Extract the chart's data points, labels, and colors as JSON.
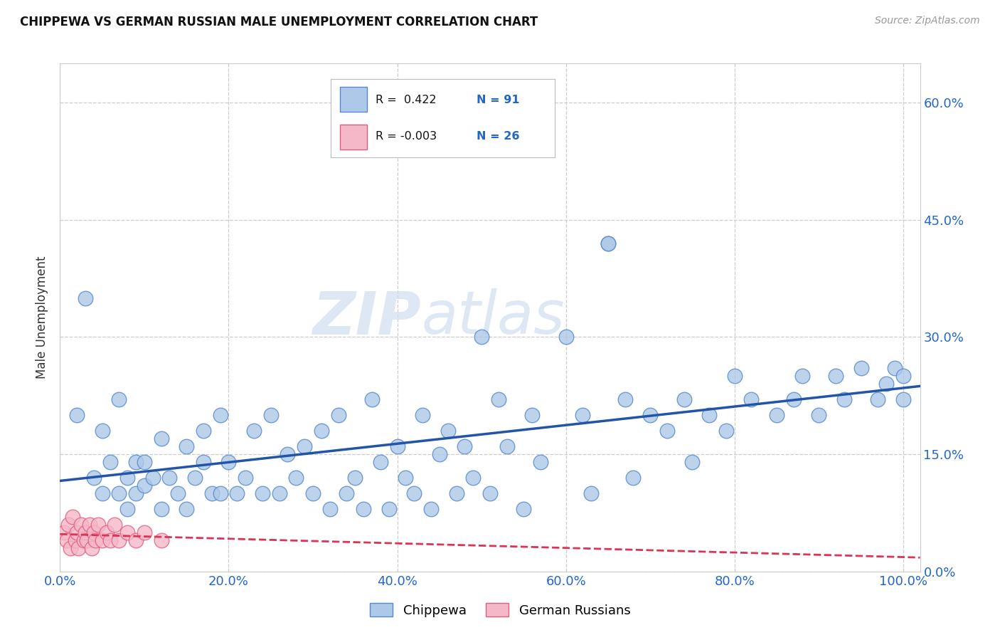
{
  "title": "CHIPPEWA VS GERMAN RUSSIAN MALE UNEMPLOYMENT CORRELATION CHART",
  "source": "Source: ZipAtlas.com",
  "ylabel": "Male Unemployment",
  "chippewa_color": "#adc8e8",
  "chippewa_edge": "#5588cc",
  "german_russian_color": "#f5b8c8",
  "german_russian_edge": "#e06080",
  "regression_line_chippewa_color": "#2255aa",
  "regression_line_german_color": "#dd3355",
  "watermark_zip": "ZIP",
  "watermark_atlas": "atlas",
  "legend_line1": "R =  0.422   N = 91",
  "legend_line2": "R = -0.003   N = 26",
  "chippewa_x": [
    2,
    3,
    4,
    5,
    5,
    6,
    7,
    7,
    8,
    8,
    9,
    9,
    10,
    10,
    11,
    12,
    12,
    13,
    14,
    15,
    15,
    16,
    17,
    17,
    18,
    19,
    19,
    20,
    21,
    22,
    23,
    24,
    25,
    26,
    27,
    28,
    29,
    30,
    31,
    32,
    33,
    34,
    35,
    36,
    37,
    38,
    39,
    40,
    41,
    42,
    43,
    44,
    45,
    46,
    47,
    48,
    49,
    50,
    51,
    52,
    53,
    55,
    56,
    57,
    60,
    62,
    63,
    65,
    65,
    67,
    68,
    70,
    72,
    74,
    75,
    77,
    79,
    80,
    82,
    85,
    87,
    88,
    90,
    92,
    93,
    95,
    97,
    98,
    99,
    100,
    100
  ],
  "chippewa_y": [
    20,
    35,
    12,
    18,
    10,
    14,
    10,
    22,
    12,
    8,
    14,
    10,
    11,
    14,
    12,
    8,
    17,
    12,
    10,
    8,
    16,
    12,
    18,
    14,
    10,
    20,
    10,
    14,
    10,
    12,
    18,
    10,
    20,
    10,
    15,
    12,
    16,
    10,
    18,
    8,
    20,
    10,
    12,
    8,
    22,
    14,
    8,
    16,
    12,
    10,
    20,
    8,
    15,
    18,
    10,
    16,
    12,
    30,
    10,
    22,
    16,
    8,
    20,
    14,
    30,
    20,
    10,
    42,
    42,
    22,
    12,
    20,
    18,
    22,
    14,
    20,
    18,
    25,
    22,
    20,
    22,
    25,
    20,
    25,
    22,
    26,
    22,
    24,
    26,
    25,
    22
  ],
  "german_russian_x": [
    0.5,
    0.8,
    1.0,
    1.2,
    1.5,
    1.8,
    2.0,
    2.2,
    2.5,
    2.8,
    3.0,
    3.2,
    3.5,
    3.8,
    4.0,
    4.2,
    4.5,
    5.0,
    5.5,
    6.0,
    6.5,
    7.0,
    8.0,
    9.0,
    10.0,
    12.0
  ],
  "german_russian_y": [
    5,
    4,
    6,
    3,
    7,
    4,
    5,
    3,
    6,
    4,
    5,
    4,
    6,
    3,
    5,
    4,
    6,
    4,
    5,
    4,
    6,
    4,
    5,
    4,
    5,
    4
  ],
  "xtick_vals": [
    0,
    20,
    40,
    60,
    80,
    100
  ],
  "ytick_vals": [
    0,
    15,
    30,
    45,
    60
  ],
  "xlim": [
    0,
    102
  ],
  "ylim": [
    0,
    65
  ]
}
